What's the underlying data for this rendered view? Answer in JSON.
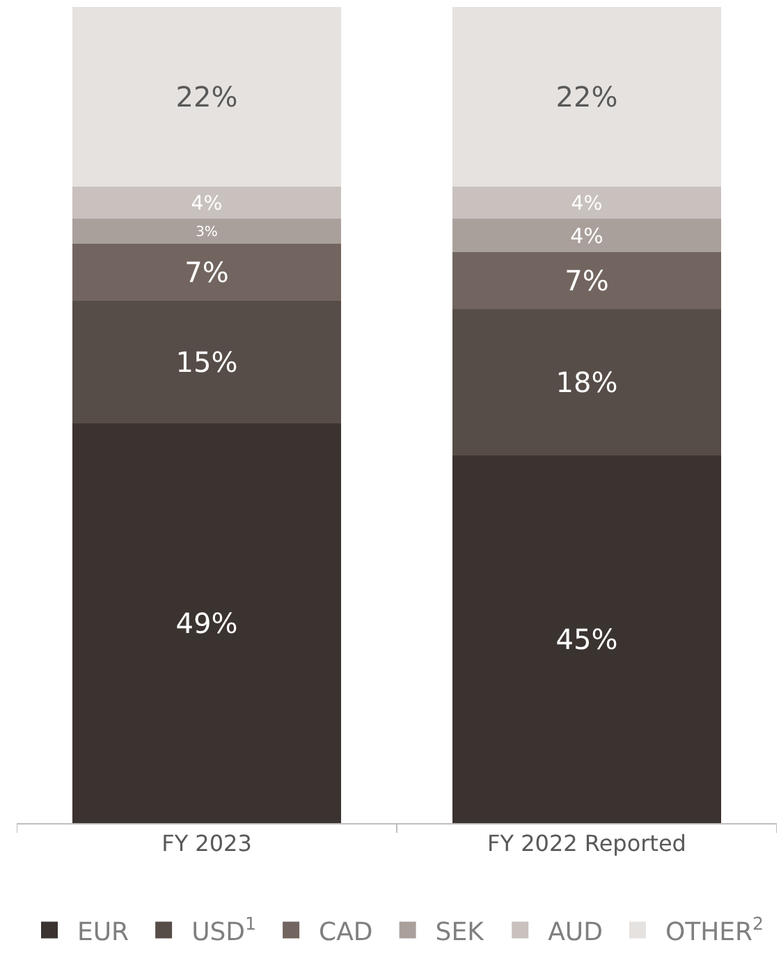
{
  "chart_data": {
    "type": "bar",
    "stacked": true,
    "categories": [
      "FY 2023",
      "FY 2022 Reported"
    ],
    "ylim": [
      0,
      100
    ],
    "tick_labels": "x",
    "grid": false,
    "legend": "bottom",
    "series": [
      {
        "name": "EUR",
        "color": "#3b3330",
        "values": [
          49,
          45
        ],
        "value_labels": [
          "49%",
          "45%"
        ]
      },
      {
        "name": "USD$^{1}$",
        "color": "#574d48",
        "values": [
          15,
          18
        ],
        "value_labels": [
          "15%",
          "18%"
        ]
      },
      {
        "name": "CAD",
        "color": "#726560",
        "values": [
          7,
          7
        ],
        "value_labels": [
          "7%",
          "7%"
        ]
      },
      {
        "name": "SEK",
        "color": "#aaa09b",
        "values": [
          3,
          4
        ],
        "value_labels": [
          "3%",
          "4%"
        ]
      },
      {
        "name": "AUD",
        "color": "#c9c1be",
        "values": [
          4,
          4
        ],
        "value_labels": [
          "4%",
          "4%"
        ]
      },
      {
        "name": "OTHER$^{2}$",
        "color": "#e6e2df",
        "values": [
          22,
          22
        ],
        "value_labels": [
          "22%",
          "22%"
        ]
      }
    ]
  }
}
